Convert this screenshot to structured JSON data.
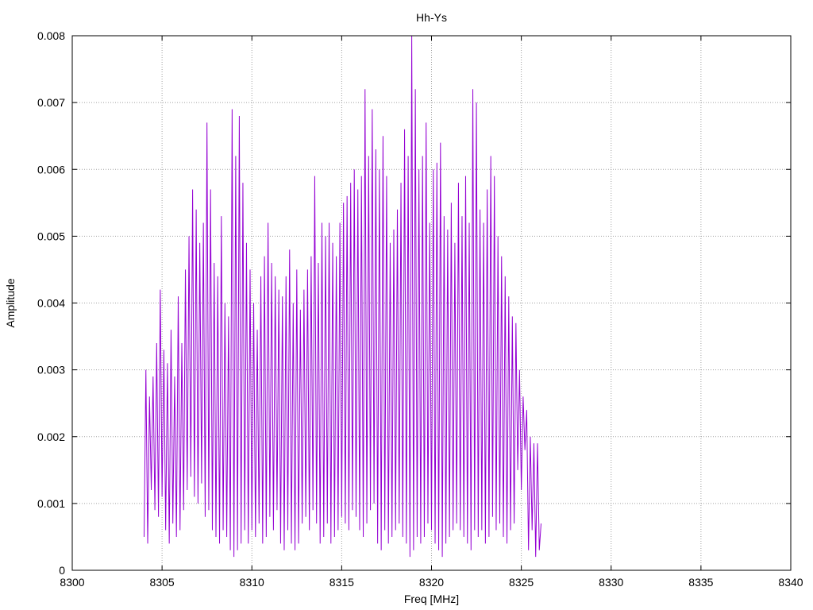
{
  "chart_data": {
    "type": "line",
    "title": "Hh-Ys",
    "xlabel": "Freq [MHz]",
    "ylabel": "Amplitude",
    "xlim": [
      8300,
      8340
    ],
    "ylim": [
      0,
      0.008
    ],
    "xticks": [
      "8300",
      "8305",
      "8310",
      "8315",
      "8320",
      "8325",
      "8330",
      "8335",
      "8340"
    ],
    "yticks": [
      "0",
      "0.001",
      "0.002",
      "0.003",
      "0.004",
      "0.005",
      "0.006",
      "0.007",
      "0.008"
    ],
    "grid": true,
    "series": [
      {
        "color": "#9400d3",
        "x_start": 8304,
        "x_step": 0.1,
        "values": [
          0.0005,
          0.003,
          0.0004,
          0.0026,
          0.0012,
          0.0029,
          0.0009,
          0.0034,
          0.0008,
          0.0042,
          0.0011,
          0.0033,
          0.0006,
          0.0031,
          0.0004,
          0.0036,
          0.0007,
          0.0029,
          0.0005,
          0.0041,
          0.0006,
          0.0034,
          0.0009,
          0.0045,
          0.0012,
          0.005,
          0.0014,
          0.0057,
          0.0011,
          0.0054,
          0.001,
          0.0049,
          0.0013,
          0.0052,
          0.0008,
          0.0067,
          0.0009,
          0.0057,
          0.0006,
          0.0046,
          0.0005,
          0.0044,
          0.0004,
          0.0053,
          0.0006,
          0.004,
          0.0005,
          0.0038,
          0.0003,
          0.0069,
          0.0002,
          0.0062,
          0.0003,
          0.0068,
          0.0004,
          0.0058,
          0.0006,
          0.0049,
          0.0004,
          0.0045,
          0.0006,
          0.004,
          0.0005,
          0.0036,
          0.0007,
          0.0044,
          0.0004,
          0.0047,
          0.0005,
          0.0052,
          0.0008,
          0.0046,
          0.0006,
          0.0044,
          0.0009,
          0.0042,
          0.0004,
          0.0041,
          0.0003,
          0.0044,
          0.0006,
          0.0048,
          0.0004,
          0.004,
          0.0003,
          0.0045,
          0.0004,
          0.0039,
          0.0007,
          0.0042,
          0.0008,
          0.0045,
          0.0006,
          0.0047,
          0.0009,
          0.0059,
          0.0007,
          0.0046,
          0.0004,
          0.0052,
          0.0005,
          0.005,
          0.0007,
          0.0052,
          0.0004,
          0.0049,
          0.0005,
          0.0047,
          0.0006,
          0.0052,
          0.0008,
          0.0055,
          0.0007,
          0.0056,
          0.0006,
          0.0058,
          0.0009,
          0.006,
          0.0008,
          0.0057,
          0.0006,
          0.0059,
          0.0005,
          0.0072,
          0.0007,
          0.0062,
          0.0009,
          0.0069,
          0.001,
          0.0063,
          0.0004,
          0.006,
          0.0003,
          0.0065,
          0.0006,
          0.0059,
          0.0004,
          0.0049,
          0.0005,
          0.0051,
          0.0006,
          0.0054,
          0.0007,
          0.0058,
          0.0005,
          0.0066,
          0.0004,
          0.0062,
          0.0002,
          0.008,
          0.0003,
          0.0072,
          0.0005,
          0.006,
          0.0004,
          0.0062,
          0.0005,
          0.0067,
          0.0007,
          0.0052,
          0.0006,
          0.006,
          0.0004,
          0.0061,
          0.0003,
          0.0064,
          0.0002,
          0.0053,
          0.0004,
          0.0051,
          0.0005,
          0.0055,
          0.0006,
          0.0049,
          0.0007,
          0.0058,
          0.0006,
          0.0053,
          0.0005,
          0.0059,
          0.0004,
          0.0052,
          0.0003,
          0.0072,
          0.0006,
          0.007,
          0.0005,
          0.0054,
          0.0006,
          0.0052,
          0.0004,
          0.0057,
          0.0005,
          0.0062,
          0.0008,
          0.0059,
          0.0006,
          0.005,
          0.0007,
          0.0047,
          0.0005,
          0.0044,
          0.0004,
          0.0041,
          0.0006,
          0.0038,
          0.0007,
          0.0037,
          0.0015,
          0.003,
          0.0012,
          0.0026,
          0.0018,
          0.0024,
          0.0003,
          0.002,
          0.0006,
          0.0019,
          0.0002,
          0.0019,
          0.0003,
          0.0007
        ]
      }
    ]
  }
}
